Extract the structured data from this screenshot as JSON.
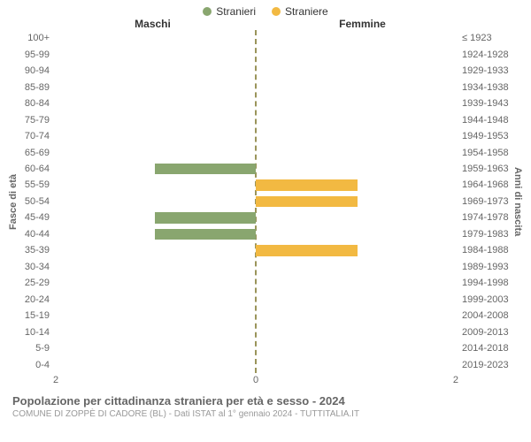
{
  "legend": {
    "items": [
      {
        "label": "Stranieri",
        "color": "#89a66f"
      },
      {
        "label": "Straniere",
        "color": "#f2b942"
      }
    ]
  },
  "column_headers": {
    "left": "Maschi",
    "right": "Femmine"
  },
  "y_axis_left_label": "Fasce di età",
  "y_axis_right_label": "Anni di nascita",
  "chart": {
    "type": "population-pyramid",
    "xlim": [
      0,
      2
    ],
    "xtick_step": 2,
    "background_color": "#ffffff",
    "center_line_color": "#9a945a",
    "male_color": "#89a66f",
    "female_color": "#f2b942",
    "rows": [
      {
        "age": "100+",
        "birth": "≤ 1923",
        "m": 0,
        "f": 0
      },
      {
        "age": "95-99",
        "birth": "1924-1928",
        "m": 0,
        "f": 0
      },
      {
        "age": "90-94",
        "birth": "1929-1933",
        "m": 0,
        "f": 0
      },
      {
        "age": "85-89",
        "birth": "1934-1938",
        "m": 0,
        "f": 0
      },
      {
        "age": "80-84",
        "birth": "1939-1943",
        "m": 0,
        "f": 0
      },
      {
        "age": "75-79",
        "birth": "1944-1948",
        "m": 0,
        "f": 0
      },
      {
        "age": "70-74",
        "birth": "1949-1953",
        "m": 0,
        "f": 0
      },
      {
        "age": "65-69",
        "birth": "1954-1958",
        "m": 0,
        "f": 0
      },
      {
        "age": "60-64",
        "birth": "1959-1963",
        "m": 1,
        "f": 0
      },
      {
        "age": "55-59",
        "birth": "1964-1968",
        "m": 0,
        "f": 1
      },
      {
        "age": "50-54",
        "birth": "1969-1973",
        "m": 0,
        "f": 1
      },
      {
        "age": "45-49",
        "birth": "1974-1978",
        "m": 1,
        "f": 0
      },
      {
        "age": "40-44",
        "birth": "1979-1983",
        "m": 1,
        "f": 0
      },
      {
        "age": "35-39",
        "birth": "1984-1988",
        "m": 0,
        "f": 1
      },
      {
        "age": "30-34",
        "birth": "1989-1993",
        "m": 0,
        "f": 0
      },
      {
        "age": "25-29",
        "birth": "1994-1998",
        "m": 0,
        "f": 0
      },
      {
        "age": "20-24",
        "birth": "1999-2003",
        "m": 0,
        "f": 0
      },
      {
        "age": "15-19",
        "birth": "2004-2008",
        "m": 0,
        "f": 0
      },
      {
        "age": "10-14",
        "birth": "2009-2013",
        "m": 0,
        "f": 0
      },
      {
        "age": "5-9",
        "birth": "2014-2018",
        "m": 0,
        "f": 0
      },
      {
        "age": "0-4",
        "birth": "2019-2023",
        "m": 0,
        "f": 0
      }
    ]
  },
  "x_axis": {
    "left_outer": "2",
    "center": "0",
    "right_outer": "2"
  },
  "footer": {
    "title": "Popolazione per cittadinanza straniera per età e sesso - 2024",
    "subtitle": "COMUNE DI ZOPPÈ DI CADORE (BL) - Dati ISTAT al 1° gennaio 2024 - TUTTITALIA.IT"
  }
}
